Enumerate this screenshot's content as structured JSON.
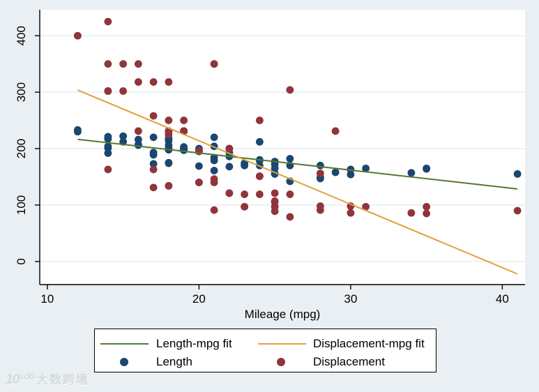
{
  "watermark": {
    "logo": "10¹⁰⁰",
    "text": "大数跨境"
  },
  "legend": {
    "items": [
      {
        "label": "Length-mpg fit",
        "type": "line",
        "color": "#56782d"
      },
      {
        "label": "Displacement-mpg fit",
        "type": "line",
        "color": "#e2a13c"
      },
      {
        "label": "Length",
        "type": "marker",
        "color": "#1a476f"
      },
      {
        "label": "Displacement",
        "type": "marker",
        "color": "#90353b"
      }
    ]
  },
  "chart_data": {
    "type": "scatter",
    "title": "",
    "xlabel": "Mileage (mpg)",
    "ylabel": "",
    "x_ticks": [
      10,
      20,
      30,
      40
    ],
    "y_ticks": [
      0,
      100,
      200,
      300,
      400
    ],
    "xlim": [
      9.5,
      41.5
    ],
    "ylim": [
      -41,
      446
    ],
    "grid": true,
    "legend_position": "below",
    "background": "#e9eff2",
    "plot_background": "#ffffff",
    "gridline_color": "#e4ecf0",
    "series": [
      {
        "name": "Length",
        "type": "scatter",
        "color": "#1a476f",
        "points": [
          [
            22,
            186
          ],
          [
            17,
            173
          ],
          [
            22,
            168
          ],
          [
            20,
            196
          ],
          [
            15,
            222
          ],
          [
            18,
            218
          ],
          [
            26,
            170
          ],
          [
            20,
            200
          ],
          [
            16,
            207
          ],
          [
            19,
            200
          ],
          [
            14,
            221
          ],
          [
            14,
            204
          ],
          [
            21,
            204
          ],
          [
            29,
            158
          ],
          [
            24,
            212
          ],
          [
            22,
            193
          ],
          [
            22,
            200
          ],
          [
            24,
            179
          ],
          [
            19,
            197
          ],
          [
            30,
            163
          ],
          [
            18,
            206
          ],
          [
            16,
            216
          ],
          [
            17,
            220
          ],
          [
            28,
            147
          ],
          [
            21,
            179
          ],
          [
            12,
            233
          ],
          [
            12,
            230
          ],
          [
            14,
            201
          ],
          [
            20,
            169
          ],
          [
            14,
            221
          ],
          [
            15,
            212
          ],
          [
            18,
            198
          ],
          [
            14,
            217
          ],
          [
            20,
            195
          ],
          [
            21,
            220
          ],
          [
            19,
            198
          ],
          [
            19,
            198
          ],
          [
            18,
            218
          ],
          [
            19,
            200
          ],
          [
            24,
            180
          ],
          [
            16,
            206
          ],
          [
            28,
            170
          ],
          [
            34,
            157
          ],
          [
            25,
            165
          ],
          [
            26,
            182
          ],
          [
            18,
            201
          ],
          [
            18,
            214
          ],
          [
            18,
            198
          ],
          [
            19,
            201
          ],
          [
            19,
            199
          ],
          [
            19,
            203
          ],
          [
            24,
            179
          ],
          [
            17,
            189
          ],
          [
            23,
            174
          ],
          [
            25,
            177
          ],
          [
            23,
            170
          ],
          [
            35,
            165
          ],
          [
            24,
            170
          ],
          [
            21,
            184
          ],
          [
            21,
            161
          ],
          [
            25,
            172
          ],
          [
            28,
            149
          ],
          [
            30,
            154
          ],
          [
            14,
            192
          ],
          [
            26,
            142
          ],
          [
            35,
            164
          ],
          [
            18,
            174
          ],
          [
            31,
            165
          ],
          [
            18,
            175
          ],
          [
            23,
            172
          ],
          [
            41,
            155
          ],
          [
            25,
            155
          ],
          [
            25,
            156
          ],
          [
            17,
            193
          ]
        ]
      },
      {
        "name": "Displacement",
        "type": "scatter",
        "color": "#90353b",
        "points": [
          [
            22,
            121
          ],
          [
            17,
            258
          ],
          [
            22,
            121
          ],
          [
            20,
            196
          ],
          [
            15,
            350
          ],
          [
            18,
            231
          ],
          [
            26,
            304
          ],
          [
            20,
            196
          ],
          [
            16,
            231
          ],
          [
            19,
            231
          ],
          [
            14,
            425
          ],
          [
            14,
            350
          ],
          [
            21,
            350
          ],
          [
            29,
            231
          ],
          [
            24,
            250
          ],
          [
            22,
            200
          ],
          [
            22,
            200
          ],
          [
            24,
            151
          ],
          [
            19,
            250
          ],
          [
            30,
            98
          ],
          [
            18,
            318
          ],
          [
            16,
            318
          ],
          [
            17,
            318
          ],
          [
            28,
            98
          ],
          [
            21,
            140
          ],
          [
            12,
            400
          ],
          [
            12,
            400
          ],
          [
            14,
            302
          ],
          [
            20,
            140
          ],
          [
            14,
            302
          ],
          [
            15,
            302
          ],
          [
            18,
            250
          ],
          [
            14,
            302
          ],
          [
            20,
            140
          ],
          [
            21,
            350
          ],
          [
            19,
            231
          ],
          [
            19,
            231
          ],
          [
            18,
            231
          ],
          [
            19,
            231
          ],
          [
            24,
            151
          ],
          [
            16,
            350
          ],
          [
            28,
            156
          ],
          [
            34,
            86
          ],
          [
            25,
            105
          ],
          [
            26,
            119
          ],
          [
            18,
            225
          ],
          [
            18,
            231
          ],
          [
            18,
            231
          ],
          [
            19,
            231
          ],
          [
            19,
            231
          ],
          [
            19,
            231
          ],
          [
            24,
            151
          ],
          [
            17,
            131
          ],
          [
            23,
            97
          ],
          [
            25,
            121
          ],
          [
            23,
            119
          ],
          [
            35,
            85
          ],
          [
            24,
            119
          ],
          [
            21,
            146
          ],
          [
            21,
            91
          ],
          [
            25,
            107
          ],
          [
            28,
            91
          ],
          [
            30,
            86
          ],
          [
            14,
            163
          ],
          [
            26,
            79
          ],
          [
            35,
            97
          ],
          [
            18,
            134
          ],
          [
            31,
            97
          ],
          [
            18,
            134
          ],
          [
            23,
            97
          ],
          [
            41,
            90
          ],
          [
            25,
            89
          ],
          [
            25,
            97
          ],
          [
            17,
            163
          ]
        ]
      },
      {
        "name": "Length-mpg fit",
        "type": "linear_fit",
        "of": "Length",
        "color": "#56782d",
        "x_range": [
          12,
          41
        ]
      },
      {
        "name": "Displacement-mpg fit",
        "type": "linear_fit",
        "of": "Displacement",
        "color": "#e2a13c",
        "x_range": [
          12,
          41
        ]
      }
    ]
  }
}
